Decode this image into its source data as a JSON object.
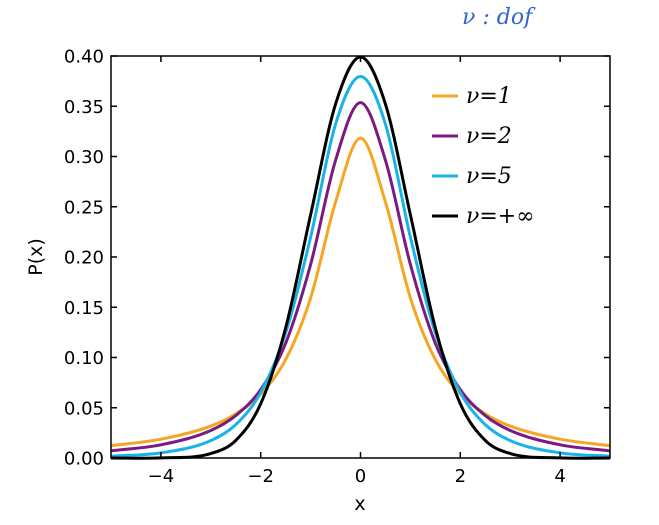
{
  "chart_data": {
    "type": "line",
    "title": "",
    "xlabel": "x",
    "ylabel": "P(x)",
    "xlim": [
      -5,
      5
    ],
    "ylim": [
      0,
      0.4
    ],
    "xticks": [
      -4,
      -2,
      0,
      2,
      4
    ],
    "xtick_labels": [
      "−4",
      "−2",
      "0",
      "2",
      "4"
    ],
    "yticks": [
      0.0,
      0.05,
      0.1,
      0.15,
      0.2,
      0.25,
      0.3,
      0.35,
      0.4
    ],
    "ytick_labels": [
      "0.00",
      "0.05",
      "0.10",
      "0.15",
      "0.20",
      "0.25",
      "0.30",
      "0.35",
      "0.40"
    ],
    "grid": false,
    "legend_position": "top-right",
    "annotation": "ν : dof",
    "x": [
      -5,
      -4,
      -3,
      -2.5,
      -2,
      -1.5,
      -1,
      -0.5,
      0,
      0.5,
      1,
      1.5,
      2,
      2.5,
      3,
      4,
      5
    ],
    "series": [
      {
        "name": "ν=1",
        "color": "#f5a623",
        "values": [
          0.0122,
          0.0187,
          0.0318,
          0.0439,
          0.0637,
          0.0979,
          0.1592,
          0.2546,
          0.3183,
          0.2546,
          0.1592,
          0.0979,
          0.0637,
          0.0439,
          0.0318,
          0.0187,
          0.0122
        ]
      },
      {
        "name": "ν=2",
        "color": "#7b1a7f",
        "values": [
          0.0071,
          0.0131,
          0.0274,
          0.0422,
          0.068,
          0.1141,
          0.1925,
          0.2962,
          0.3536,
          0.2962,
          0.1925,
          0.1141,
          0.068,
          0.0422,
          0.0274,
          0.0131,
          0.0071
        ]
      },
      {
        "name": "ν=5",
        "color": "#1ab3e6",
        "values": [
          0.0018,
          0.0051,
          0.0173,
          0.0332,
          0.0651,
          0.1245,
          0.2197,
          0.3321,
          0.3796,
          0.3321,
          0.2197,
          0.1245,
          0.0651,
          0.0332,
          0.0173,
          0.0051,
          0.0018
        ]
      },
      {
        "name": "ν=+∞",
        "color": "#000000",
        "values": [
          1.5e-06,
          0.0001338,
          0.0044318,
          0.0175283,
          0.053991,
          0.1295176,
          0.2419707,
          0.3520653,
          0.3989423,
          0.3520653,
          0.2419707,
          0.1295176,
          0.053991,
          0.0175283,
          0.0044318,
          0.0001338,
          1.5e-06
        ]
      }
    ]
  }
}
